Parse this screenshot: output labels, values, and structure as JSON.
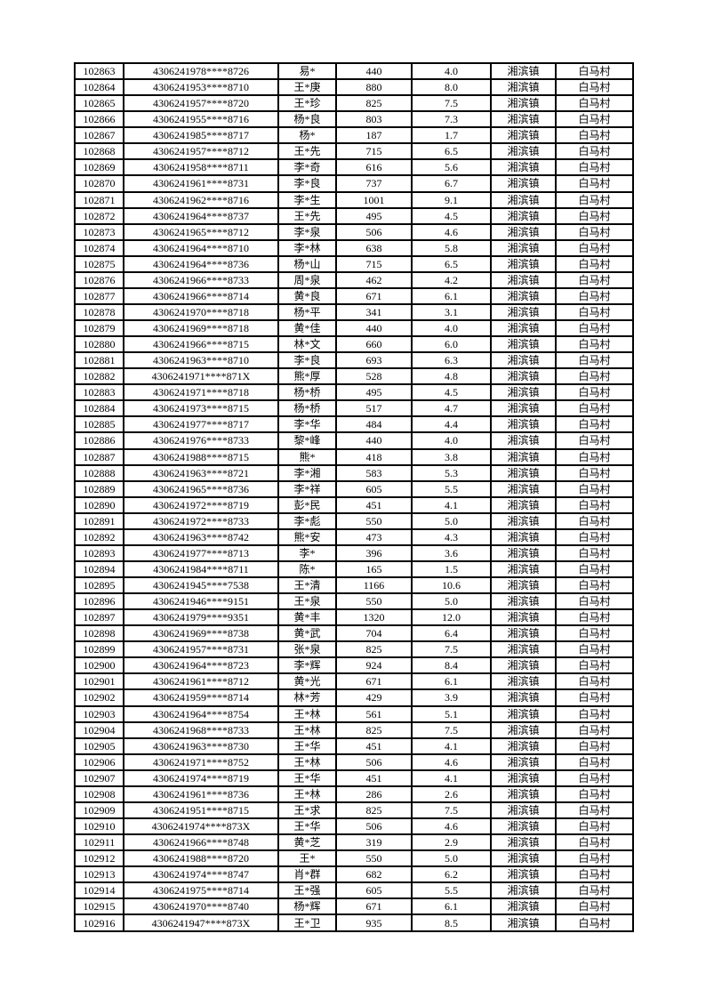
{
  "page": {
    "background_color": "#ffffff",
    "border_color": "#000000",
    "text_color": "#000000"
  },
  "table": {
    "column_keys": [
      "serial-number",
      "masked-id-number",
      "masked-name",
      "amount",
      "derived-value",
      "town",
      "village"
    ],
    "rows": [
      [
        "102863",
        "4306241978****8726",
        "易*",
        "440",
        "4.0",
        "湘滨镇",
        "白马村"
      ],
      [
        "102864",
        "4306241953****8710",
        "王*庚",
        "880",
        "8.0",
        "湘滨镇",
        "白马村"
      ],
      [
        "102865",
        "4306241957****8720",
        "王*珍",
        "825",
        "7.5",
        "湘滨镇",
        "白马村"
      ],
      [
        "102866",
        "4306241955****8716",
        "杨*良",
        "803",
        "7.3",
        "湘滨镇",
        "白马村"
      ],
      [
        "102867",
        "4306241985****8717",
        "杨*",
        "187",
        "1.7",
        "湘滨镇",
        "白马村"
      ],
      [
        "102868",
        "4306241957****8712",
        "王*先",
        "715",
        "6.5",
        "湘滨镇",
        "白马村"
      ],
      [
        "102869",
        "4306241958****8711",
        "李*奇",
        "616",
        "5.6",
        "湘滨镇",
        "白马村"
      ],
      [
        "102870",
        "4306241961****8731",
        "李*良",
        "737",
        "6.7",
        "湘滨镇",
        "白马村"
      ],
      [
        "102871",
        "4306241962****8716",
        "李*生",
        "1001",
        "9.1",
        "湘滨镇",
        "白马村"
      ],
      [
        "102872",
        "4306241964****8737",
        "王*先",
        "495",
        "4.5",
        "湘滨镇",
        "白马村"
      ],
      [
        "102873",
        "4306241965****8712",
        "李*泉",
        "506",
        "4.6",
        "湘滨镇",
        "白马村"
      ],
      [
        "102874",
        "4306241964****8710",
        "李*林",
        "638",
        "5.8",
        "湘滨镇",
        "白马村"
      ],
      [
        "102875",
        "4306241964****8736",
        "杨*山",
        "715",
        "6.5",
        "湘滨镇",
        "白马村"
      ],
      [
        "102876",
        "4306241966****8733",
        "周*泉",
        "462",
        "4.2",
        "湘滨镇",
        "白马村"
      ],
      [
        "102877",
        "4306241966****8714",
        "黄*良",
        "671",
        "6.1",
        "湘滨镇",
        "白马村"
      ],
      [
        "102878",
        "4306241970****8718",
        "杨*平",
        "341",
        "3.1",
        "湘滨镇",
        "白马村"
      ],
      [
        "102879",
        "4306241969****8718",
        "黄*佳",
        "440",
        "4.0",
        "湘滨镇",
        "白马村"
      ],
      [
        "102880",
        "4306241966****8715",
        "林*文",
        "660",
        "6.0",
        "湘滨镇",
        "白马村"
      ],
      [
        "102881",
        "4306241963****8710",
        "李*良",
        "693",
        "6.3",
        "湘滨镇",
        "白马村"
      ],
      [
        "102882",
        "4306241971****871X",
        "熊*厚",
        "528",
        "4.8",
        "湘滨镇",
        "白马村"
      ],
      [
        "102883",
        "4306241971****8718",
        "杨*桥",
        "495",
        "4.5",
        "湘滨镇",
        "白马村"
      ],
      [
        "102884",
        "4306241973****8715",
        "杨*桥",
        "517",
        "4.7",
        "湘滨镇",
        "白马村"
      ],
      [
        "102885",
        "4306241977****8717",
        "李*华",
        "484",
        "4.4",
        "湘滨镇",
        "白马村"
      ],
      [
        "102886",
        "4306241976****8733",
        "黎*峰",
        "440",
        "4.0",
        "湘滨镇",
        "白马村"
      ],
      [
        "102887",
        "4306241988****8715",
        "熊*",
        "418",
        "3.8",
        "湘滨镇",
        "白马村"
      ],
      [
        "102888",
        "4306241963****8721",
        "李*湘",
        "583",
        "5.3",
        "湘滨镇",
        "白马村"
      ],
      [
        "102889",
        "4306241965****8736",
        "李*祥",
        "605",
        "5.5",
        "湘滨镇",
        "白马村"
      ],
      [
        "102890",
        "4306241972****8719",
        "彭*民",
        "451",
        "4.1",
        "湘滨镇",
        "白马村"
      ],
      [
        "102891",
        "4306241972****8733",
        "李*彪",
        "550",
        "5.0",
        "湘滨镇",
        "白马村"
      ],
      [
        "102892",
        "4306241963****8742",
        "熊*安",
        "473",
        "4.3",
        "湘滨镇",
        "白马村"
      ],
      [
        "102893",
        "4306241977****8713",
        "李*",
        "396",
        "3.6",
        "湘滨镇",
        "白马村"
      ],
      [
        "102894",
        "4306241984****8711",
        "陈*",
        "165",
        "1.5",
        "湘滨镇",
        "白马村"
      ],
      [
        "102895",
        "4306241945****7538",
        "王*清",
        "1166",
        "10.6",
        "湘滨镇",
        "白马村"
      ],
      [
        "102896",
        "4306241946****9151",
        "王*泉",
        "550",
        "5.0",
        "湘滨镇",
        "白马村"
      ],
      [
        "102897",
        "4306241979****9351",
        "黄*丰",
        "1320",
        "12.0",
        "湘滨镇",
        "白马村"
      ],
      [
        "102898",
        "4306241969****8738",
        "黄*武",
        "704",
        "6.4",
        "湘滨镇",
        "白马村"
      ],
      [
        "102899",
        "4306241957****8731",
        "张*泉",
        "825",
        "7.5",
        "湘滨镇",
        "白马村"
      ],
      [
        "102900",
        "4306241964****8723",
        "李*辉",
        "924",
        "8.4",
        "湘滨镇",
        "白马村"
      ],
      [
        "102901",
        "4306241961****8712",
        "黄*光",
        "671",
        "6.1",
        "湘滨镇",
        "白马村"
      ],
      [
        "102902",
        "4306241959****8714",
        "林*芳",
        "429",
        "3.9",
        "湘滨镇",
        "白马村"
      ],
      [
        "102903",
        "4306241964****8754",
        "王*林",
        "561",
        "5.1",
        "湘滨镇",
        "白马村"
      ],
      [
        "102904",
        "4306241968****8733",
        "王*林",
        "825",
        "7.5",
        "湘滨镇",
        "白马村"
      ],
      [
        "102905",
        "4306241963****8730",
        "王*华",
        "451",
        "4.1",
        "湘滨镇",
        "白马村"
      ],
      [
        "102906",
        "4306241971****8752",
        "王*林",
        "506",
        "4.6",
        "湘滨镇",
        "白马村"
      ],
      [
        "102907",
        "4306241974****8719",
        "王*华",
        "451",
        "4.1",
        "湘滨镇",
        "白马村"
      ],
      [
        "102908",
        "4306241961****8736",
        "王*林",
        "286",
        "2.6",
        "湘滨镇",
        "白马村"
      ],
      [
        "102909",
        "4306241951****8715",
        "王*求",
        "825",
        "7.5",
        "湘滨镇",
        "白马村"
      ],
      [
        "102910",
        "4306241974****873X",
        "王*华",
        "506",
        "4.6",
        "湘滨镇",
        "白马村"
      ],
      [
        "102911",
        "4306241966****8748",
        "黄*芝",
        "319",
        "2.9",
        "湘滨镇",
        "白马村"
      ],
      [
        "102912",
        "4306241988****8720",
        "王*",
        "550",
        "5.0",
        "湘滨镇",
        "白马村"
      ],
      [
        "102913",
        "4306241974****8747",
        "肖*群",
        "682",
        "6.2",
        "湘滨镇",
        "白马村"
      ],
      [
        "102914",
        "4306241975****8714",
        "王*强",
        "605",
        "5.5",
        "湘滨镇",
        "白马村"
      ],
      [
        "102915",
        "4306241970****8740",
        "杨*辉",
        "671",
        "6.1",
        "湘滨镇",
        "白马村"
      ],
      [
        "102916",
        "4306241947****873X",
        "王*卫",
        "935",
        "8.5",
        "湘滨镇",
        "白马村"
      ]
    ]
  }
}
